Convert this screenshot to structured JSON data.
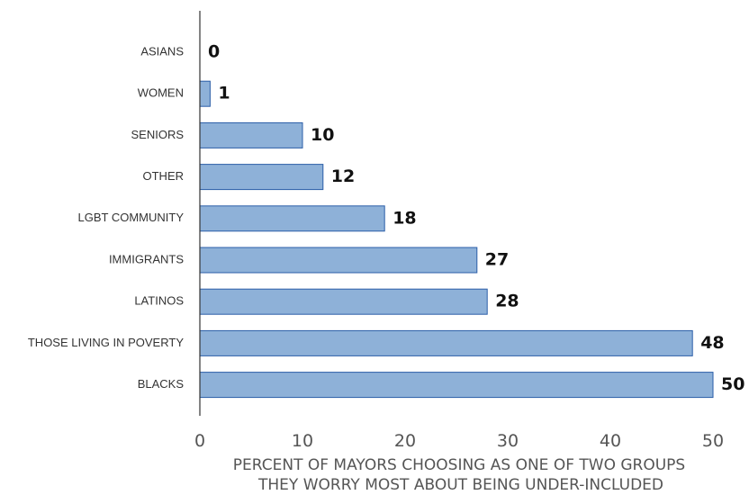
{
  "chart_data": {
    "type": "bar",
    "orientation": "horizontal",
    "categories": [
      "ASIANS",
      "WOMEN",
      "SENIORS",
      "OTHER",
      "LGBT COMMUNITY",
      "IMMIGRANTS",
      "LATINOS",
      "THOSE LIVING IN POVERTY",
      "BLACKS"
    ],
    "values": [
      0,
      1,
      10,
      12,
      18,
      27,
      28,
      48,
      50
    ],
    "xlabel_lines": [
      "PERCENT OF MAYORS CHOOSING AS ONE OF TWO GROUPS",
      "THEY WORRY MOST ABOUT BEING UNDER-INCLUDED"
    ],
    "xticks": [
      0,
      10,
      20,
      30,
      40,
      50
    ],
    "xlim": [
      0,
      50
    ],
    "grid": false,
    "bar_color": "#8eb1d8",
    "bar_edge_color": "#2b5ea8"
  }
}
